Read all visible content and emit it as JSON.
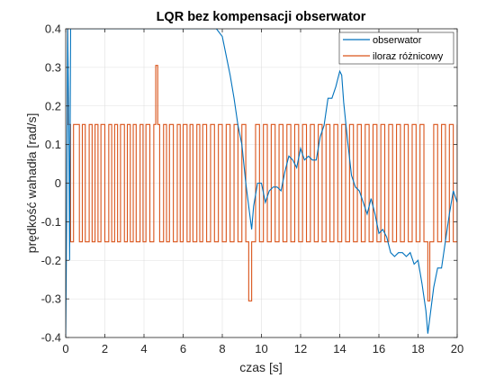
{
  "chart_data": {
    "type": "line",
    "title": "LQR bez kompensacji obserwator",
    "xlabel": "czas [s]",
    "ylabel": "prędkość wahadła [rad/s]",
    "xlim": [
      0,
      20
    ],
    "ylim": [
      -0.4,
      0.4
    ],
    "xticks": [
      0,
      2,
      4,
      6,
      8,
      10,
      12,
      14,
      16,
      18,
      20
    ],
    "yticks": [
      -0.4,
      -0.3,
      -0.2,
      -0.1,
      0,
      0.1,
      0.2,
      0.3,
      0.4
    ],
    "xtick_labels": [
      "0",
      "2",
      "4",
      "6",
      "8",
      "10",
      "12",
      "14",
      "16",
      "18",
      "20"
    ],
    "ytick_labels": [
      "-0.4",
      "-0.3",
      "-0.2",
      "-0.1",
      "0",
      "0.1",
      "0.2",
      "0.3",
      "0.4"
    ],
    "grid": true,
    "legend_position": "top-right",
    "series": [
      {
        "name": "obserwator",
        "color": "#0072BD",
        "x": [
          0,
          0.05,
          0.1,
          0.15,
          0.2,
          0.25,
          7.7,
          8.0,
          8.2,
          8.4,
          8.6,
          8.8,
          9.0,
          9.2,
          9.4,
          9.5,
          9.6,
          9.8,
          10.0,
          10.2,
          10.4,
          10.6,
          10.8,
          11.0,
          11.2,
          11.4,
          11.6,
          11.8,
          12.0,
          12.2,
          12.4,
          12.6,
          12.8,
          13.0,
          13.2,
          13.4,
          13.6,
          13.8,
          14.0,
          14.1,
          14.2,
          14.4,
          14.6,
          14.8,
          15.0,
          15.2,
          15.4,
          15.6,
          15.8,
          16.0,
          16.2,
          16.4,
          16.6,
          16.8,
          17.0,
          17.2,
          17.4,
          17.6,
          17.8,
          18.0,
          18.2,
          18.4,
          18.5,
          18.6,
          18.8,
          19.0,
          19.2,
          19.4,
          19.6,
          19.8,
          20.0
        ],
        "values": [
          -0.4,
          -0.1,
          0.4,
          0.2,
          -0.2,
          0.4,
          0.4,
          0.38,
          0.33,
          0.28,
          0.22,
          0.15,
          0.1,
          0.0,
          -0.08,
          -0.12,
          -0.06,
          0.0,
          0.0,
          -0.05,
          -0.02,
          -0.01,
          -0.01,
          -0.02,
          0.03,
          0.07,
          0.06,
          0.04,
          0.09,
          0.06,
          0.07,
          0.06,
          0.06,
          0.12,
          0.15,
          0.22,
          0.22,
          0.25,
          0.29,
          0.28,
          0.21,
          0.11,
          0.02,
          -0.01,
          -0.02,
          -0.05,
          -0.08,
          -0.04,
          -0.08,
          -0.13,
          -0.12,
          -0.14,
          -0.18,
          -0.19,
          -0.18,
          -0.18,
          -0.19,
          -0.18,
          -0.21,
          -0.2,
          -0.26,
          -0.33,
          -0.39,
          -0.35,
          -0.27,
          -0.22,
          -0.22,
          -0.15,
          -0.08,
          -0.02,
          -0.05
        ]
      },
      {
        "name": "iloraz różnicowy",
        "color": "#D95319",
        "levels": [
          -0.152,
          0,
          0.152,
          0.305,
          -0.305
        ],
        "x": [
          0,
          0.1,
          0.25,
          0.4,
          0.7,
          0.85,
          1.0,
          1.2,
          1.35,
          1.5,
          1.65,
          1.8,
          2.0,
          2.2,
          2.35,
          2.5,
          2.65,
          2.8,
          3.0,
          3.15,
          3.3,
          3.45,
          3.6,
          3.8,
          3.95,
          4.1,
          4.3,
          4.5,
          4.6,
          4.7,
          4.8,
          5.0,
          5.15,
          5.3,
          5.5,
          5.7,
          5.85,
          6.0,
          6.2,
          6.35,
          6.5,
          6.7,
          6.85,
          7.0,
          7.2,
          7.4,
          7.6,
          7.8,
          8.0,
          8.2,
          8.4,
          8.6,
          8.8,
          9.0,
          9.2,
          9.35,
          9.5,
          9.7,
          9.9,
          10.1,
          10.3,
          10.5,
          10.7,
          10.9,
          11.1,
          11.3,
          11.5,
          11.7,
          11.9,
          12.1,
          12.3,
          12.5,
          12.7,
          12.9,
          13.1,
          13.3,
          13.5,
          13.7,
          13.9,
          14.1,
          14.3,
          14.5,
          14.7,
          14.9,
          15.1,
          15.3,
          15.5,
          15.7,
          15.9,
          16.1,
          16.3,
          16.5,
          16.7,
          16.9,
          17.1,
          17.3,
          17.5,
          17.7,
          17.9,
          18.1,
          18.3,
          18.5,
          18.6,
          18.8,
          19.0,
          19.2,
          19.4,
          19.6,
          19.8,
          20.0
        ],
        "values": [
          0.4,
          0.152,
          -0.152,
          0.152,
          -0.152,
          0.152,
          -0.152,
          0.152,
          -0.152,
          0.152,
          -0.152,
          0.152,
          -0.152,
          0.152,
          -0.152,
          0.152,
          -0.152,
          0.152,
          -0.152,
          0.152,
          -0.152,
          0.152,
          -0.152,
          0.152,
          -0.152,
          0.152,
          -0.152,
          0.152,
          0.305,
          0.152,
          -0.152,
          0.152,
          -0.152,
          0.152,
          -0.152,
          0.152,
          -0.152,
          0.152,
          -0.152,
          0.152,
          -0.152,
          0.152,
          -0.152,
          0.152,
          -0.152,
          0.152,
          -0.152,
          0.152,
          -0.152,
          0.152,
          -0.152,
          0.152,
          -0.152,
          0.152,
          -0.152,
          -0.305,
          -0.152,
          0.152,
          -0.152,
          0.152,
          -0.152,
          0.152,
          -0.152,
          0.152,
          -0.152,
          0.152,
          -0.152,
          0.152,
          -0.152,
          0.152,
          -0.152,
          0.152,
          -0.152,
          0.152,
          -0.152,
          0.152,
          -0.152,
          0.152,
          -0.152,
          0.152,
          -0.152,
          0.152,
          -0.152,
          0.152,
          -0.152,
          0.152,
          -0.152,
          0.152,
          -0.152,
          0.152,
          -0.152,
          0.152,
          -0.152,
          0.152,
          -0.152,
          0.152,
          -0.152,
          0.152,
          -0.152,
          0.152,
          -0.152,
          -0.305,
          -0.152,
          0.152,
          -0.152,
          0.152,
          -0.152,
          0.152,
          -0.152,
          0.152
        ]
      }
    ]
  }
}
